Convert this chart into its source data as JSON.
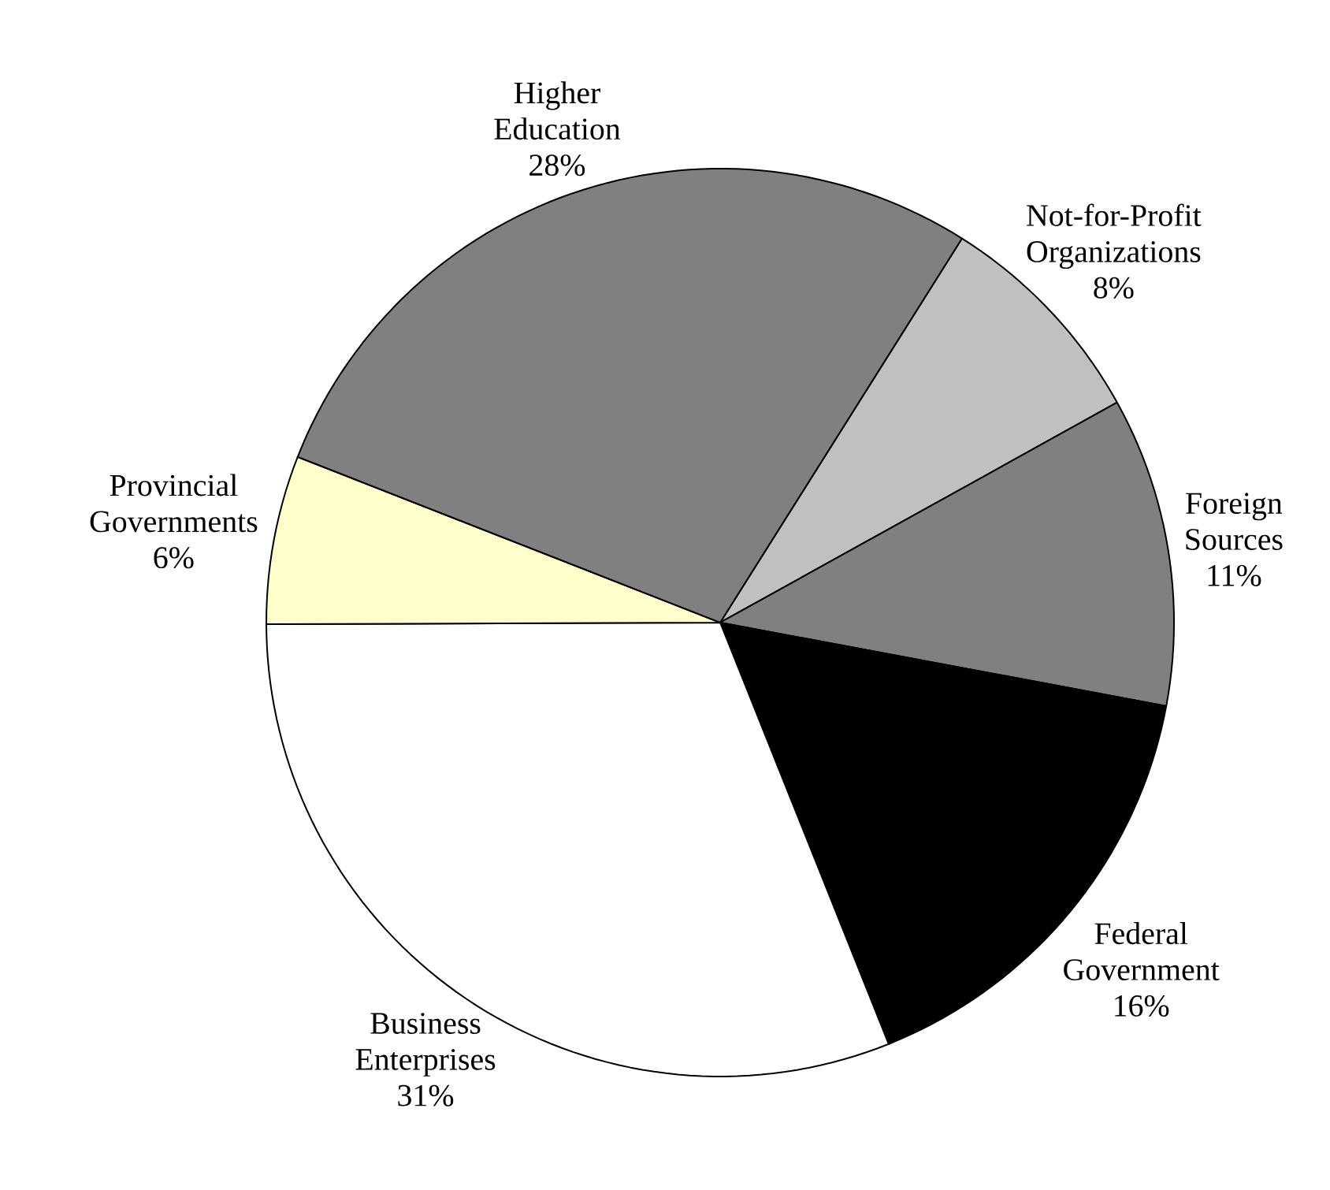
{
  "chart_data": {
    "type": "pie",
    "categories": [
      "Not-for-Profit Organizations",
      "Foreign Sources",
      "Federal Government",
      "Business Enterprises",
      "Provincial Governments",
      "Higher Education"
    ],
    "values": [
      8,
      11,
      16,
      31,
      6,
      28
    ],
    "value_labels": [
      "8%",
      "11%",
      "16%",
      "31%",
      "6%",
      "28%"
    ],
    "colors": [
      "#c0c0c0",
      "#808080",
      "#000000",
      "#ffffff",
      "#ffffcc",
      "#808080"
    ]
  }
}
